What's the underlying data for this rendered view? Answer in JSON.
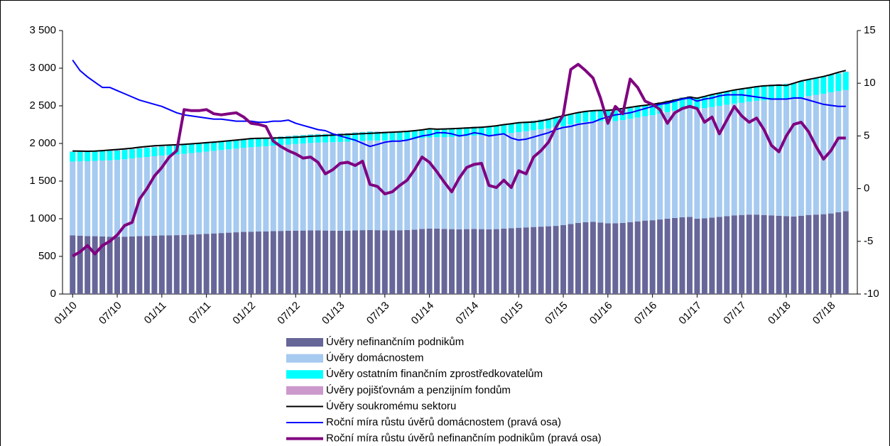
{
  "chart_data": {
    "type": "bar",
    "categories": [
      "01/10",
      null,
      null,
      null,
      null,
      null,
      "07/10",
      null,
      null,
      null,
      null,
      null,
      "01/11",
      null,
      null,
      null,
      null,
      null,
      "07/11",
      null,
      null,
      null,
      null,
      null,
      "01/12",
      null,
      null,
      null,
      null,
      null,
      "07/12",
      null,
      null,
      null,
      null,
      null,
      "01/13",
      null,
      null,
      null,
      null,
      null,
      "07/13",
      null,
      null,
      null,
      null,
      null,
      "01/14",
      null,
      null,
      null,
      null,
      null,
      "07/14",
      null,
      null,
      null,
      null,
      null,
      "01/15",
      null,
      null,
      null,
      null,
      null,
      "07/15",
      null,
      null,
      null,
      null,
      null,
      "01/16",
      null,
      null,
      null,
      null,
      null,
      "07/16",
      null,
      null,
      null,
      null,
      null,
      "01/17",
      null,
      null,
      null,
      null,
      null,
      "07/17",
      null,
      null,
      null,
      null,
      null,
      "01/18",
      null,
      null,
      null,
      null,
      null,
      "07/18",
      null,
      null
    ],
    "ylim": [
      0,
      3500
    ],
    "yticks": [
      0,
      500,
      {
        "value": 1000,
        "label": "1 000"
      },
      {
        "value": 1500,
        "label": "1 500"
      },
      {
        "value": 2000,
        "label": "2 000"
      },
      {
        "value": 2500,
        "label": "2 500"
      },
      {
        "value": 3000,
        "label": "3 000"
      },
      {
        "value": 3500,
        "label": "3 500"
      }
    ],
    "y2lim": [
      -10,
      15
    ],
    "y2ticks": [
      -10,
      -5,
      0,
      5,
      10,
      15
    ],
    "grid": false,
    "series": [
      {
        "name": "Úvěry nefinančním podnikům",
        "type": "bar",
        "color": "#666699",
        "values": [
          780,
          775,
          770,
          768,
          765,
          762,
          760,
          762,
          765,
          770,
          772,
          775,
          778,
          780,
          782,
          785,
          790,
          795,
          800,
          805,
          810,
          815,
          820,
          825,
          828,
          830,
          832,
          835,
          838,
          840,
          842,
          843,
          845,
          845,
          843,
          842,
          840,
          842,
          845,
          848,
          850,
          848,
          845,
          845,
          847,
          850,
          855,
          865,
          870,
          868,
          865,
          862,
          860,
          862,
          865,
          862,
          860,
          862,
          868,
          875,
          880,
          885,
          890,
          895,
          900,
          905,
          915,
          930,
          945,
          955,
          960,
          950,
          940,
          940,
          945,
          955,
          965,
          975,
          980,
          990,
          1000,
          1010,
          1020,
          1025,
          1000,
          1005,
          1015,
          1025,
          1035,
          1045,
          1050,
          1055,
          1055,
          1050,
          1045,
          1040,
          1035,
          1030,
          1040,
          1050,
          1055,
          1060,
          1070,
          1085,
          1100
        ]
      },
      {
        "name": "Úvěry domácnostem",
        "type": "bar",
        "color": "#a6caf0",
        "values": [
          980,
          987,
          994,
          1001,
          1008,
          1014,
          1021,
          1028,
          1035,
          1042,
          1048,
          1055,
          1062,
          1067,
          1072,
          1077,
          1082,
          1087,
          1092,
          1097,
          1102,
          1107,
          1112,
          1117,
          1122,
          1127,
          1132,
          1137,
          1141,
          1146,
          1151,
          1156,
          1161,
          1166,
          1170,
          1175,
          1180,
          1182,
          1185,
          1187,
          1190,
          1192,
          1195,
          1197,
          1200,
          1202,
          1205,
          1207,
          1210,
          1215,
          1220,
          1225,
          1230,
          1235,
          1240,
          1245,
          1250,
          1255,
          1260,
          1265,
          1270,
          1278,
          1285,
          1293,
          1300,
          1308,
          1315,
          1321,
          1327,
          1333,
          1339,
          1345,
          1350,
          1358,
          1365,
          1373,
          1380,
          1388,
          1395,
          1406,
          1417,
          1428,
          1439,
          1450,
          1460,
          1465,
          1470,
          1475,
          1480,
          1485,
          1490,
          1501,
          1512,
          1523,
          1534,
          1545,
          1555,
          1564,
          1573,
          1582,
          1591,
          1600,
          1610,
          1610,
          1610
        ]
      },
      {
        "name": "Úvěry ostatním finančním zprostředkovatelům",
        "type": "bar",
        "color": "#00ffff",
        "values": [
          130,
          128,
          127,
          126,
          125,
          125,
          124,
          124,
          123,
          122,
          122,
          121,
          120,
          120,
          119,
          118,
          117,
          117,
          116,
          115,
          114,
          113,
          112,
          111,
          110,
          110,
          110,
          110,
          110,
          110,
          110,
          110,
          110,
          110,
          110,
          110,
          110,
          110,
          112,
          114,
          115,
          114,
          112,
          110,
          110,
          110,
          110,
          110,
          110,
          110,
          111,
          112,
          113,
          114,
          115,
          116,
          117,
          118,
          119,
          120,
          120,
          122,
          124,
          126,
          128,
          130,
          132,
          134,
          136,
          138,
          139,
          140,
          140,
          141,
          142,
          143,
          144,
          145,
          145,
          146,
          147,
          148,
          149,
          150,
          150,
          155,
          160,
          165,
          170,
          175,
          180,
          185,
          190,
          195,
          198,
          200,
          200,
          205,
          210,
          215,
          220,
          225,
          230,
          235,
          240
        ]
      },
      {
        "name": "Úvěry pojišťovnám a penzijním fondům",
        "type": "bar",
        "color": "#cc99cc",
        "values": [
          5,
          5,
          5,
          5,
          5,
          5,
          5,
          5,
          5,
          5,
          5,
          5,
          5,
          5,
          5,
          5,
          5,
          5,
          5,
          5,
          5,
          5,
          5,
          5,
          5,
          5,
          5,
          5,
          5,
          5,
          5,
          5,
          5,
          5,
          5,
          5,
          5,
          5,
          5,
          5,
          5,
          5,
          5,
          5,
          5,
          5,
          5,
          5,
          5,
          5,
          5,
          5,
          5,
          5,
          5,
          5,
          5,
          5,
          5,
          5,
          5,
          5,
          5,
          5,
          5,
          5,
          5,
          5,
          5,
          5,
          5,
          5,
          5,
          5,
          5,
          5,
          5,
          5,
          5,
          5,
          5,
          5,
          5,
          5,
          5,
          5,
          5,
          5,
          5,
          5,
          5,
          5,
          5,
          5,
          5,
          5,
          5,
          5,
          5,
          5,
          5,
          5,
          5,
          5,
          5
        ]
      },
      {
        "name": "Úvěry soukromému sektoru",
        "type": "line",
        "color": "#000000",
        "width": 2,
        "values": [
          1900,
          1898,
          1896,
          1898,
          1905,
          1912,
          1920,
          1928,
          1938,
          1950,
          1960,
          1970,
          1975,
          1978,
          1982,
          1988,
          1995,
          2002,
          2010,
          2018,
          2025,
          2035,
          2045,
          2055,
          2065,
          2068,
          2070,
          2072,
          2075,
          2078,
          2082,
          2088,
          2095,
          2100,
          2105,
          2110,
          2115,
          2120,
          2125,
          2130,
          2135,
          2140,
          2145,
          2150,
          2155,
          2160,
          2170,
          2180,
          2195,
          2190,
          2192,
          2195,
          2200,
          2205,
          2210,
          2215,
          2225,
          2235,
          2250,
          2262,
          2275,
          2280,
          2285,
          2300,
          2320,
          2345,
          2367,
          2390,
          2410,
          2425,
          2435,
          2440,
          2440,
          2450,
          2465,
          2480,
          2495,
          2508,
          2520,
          2535,
          2555,
          2575,
          2595,
          2615,
          2600,
          2625,
          2650,
          2670,
          2690,
          2710,
          2725,
          2740,
          2755,
          2765,
          2770,
          2775,
          2770,
          2800,
          2830,
          2850,
          2870,
          2890,
          2915,
          2945,
          2970
        ]
      },
      {
        "name": "Roční míra růstu úvěrů domácnostem (pravá osa)",
        "type": "line",
        "axis": "y2",
        "color": "#0000ff",
        "width": 2,
        "values": [
          12.2,
          11.2,
          10.6,
          10.1,
          9.6,
          9.6,
          9.3,
          9.0,
          8.7,
          8.4,
          8.2,
          8.0,
          7.8,
          7.5,
          7.2,
          7.0,
          6.9,
          6.8,
          6.7,
          6.6,
          6.6,
          6.5,
          6.4,
          6.4,
          6.4,
          6.3,
          6.3,
          6.4,
          6.4,
          6.5,
          6.2,
          6.0,
          5.8,
          5.6,
          5.5,
          5.2,
          5.0,
          4.8,
          4.6,
          4.3,
          4.0,
          4.2,
          4.4,
          4.5,
          4.5,
          4.6,
          4.8,
          5.0,
          5.1,
          5.3,
          5.3,
          5.2,
          5.0,
          5.1,
          5.3,
          5.2,
          5.0,
          5.1,
          5.2,
          4.8,
          4.6,
          4.7,
          4.9,
          5.1,
          5.3,
          5.6,
          5.8,
          5.9,
          6.1,
          6.2,
          6.3,
          6.6,
          6.8,
          7.0,
          7.1,
          7.2,
          7.4,
          7.6,
          7.8,
          8.0,
          8.1,
          8.3,
          8.5,
          8.6,
          8.3,
          8.5,
          8.6,
          8.8,
          8.9,
          8.9,
          8.9,
          8.8,
          8.7,
          8.6,
          8.5,
          8.5,
          8.5,
          8.6,
          8.6,
          8.4,
          8.2,
          8.0,
          7.9,
          7.8,
          7.8
        ]
      },
      {
        "name": "Roční míra růstu úvěrů nefinančním podnikům (pravá osa)",
        "type": "line",
        "axis": "y2",
        "color": "#800080",
        "width": 4,
        "values": [
          -6.4,
          -6.0,
          -5.4,
          -6.2,
          -5.4,
          -5.0,
          -4.4,
          -3.5,
          -3.2,
          -1.0,
          0.0,
          1.2,
          2.0,
          3.0,
          3.6,
          7.5,
          7.4,
          7.4,
          7.5,
          7.1,
          7.0,
          7.1,
          7.2,
          6.8,
          6.2,
          6.1,
          5.9,
          4.5,
          4.0,
          3.6,
          3.3,
          2.9,
          3.0,
          2.5,
          1.4,
          1.8,
          2.4,
          2.5,
          2.2,
          2.6,
          0.4,
          0.2,
          -0.5,
          -0.3,
          0.3,
          0.8,
          1.8,
          3.0,
          2.5,
          1.6,
          0.6,
          -0.3,
          1.0,
          2.0,
          2.3,
          2.4,
          0.3,
          0.1,
          0.8,
          0.1,
          1.7,
          1.4,
          3.0,
          3.6,
          4.4,
          5.8,
          7.0,
          11.3,
          11.8,
          11.2,
          10.5,
          8.6,
          6.2,
          7.8,
          7.1,
          10.4,
          9.6,
          8.3,
          8.0,
          7.5,
          6.2,
          7.2,
          7.6,
          7.8,
          7.6,
          6.3,
          6.8,
          5.2,
          6.5,
          7.8,
          6.9,
          6.3,
          6.7,
          5.6,
          4.1,
          3.5,
          5.0,
          6.1,
          6.3,
          5.4,
          4.0,
          2.8,
          3.6,
          4.8,
          4.8
        ]
      }
    ]
  }
}
